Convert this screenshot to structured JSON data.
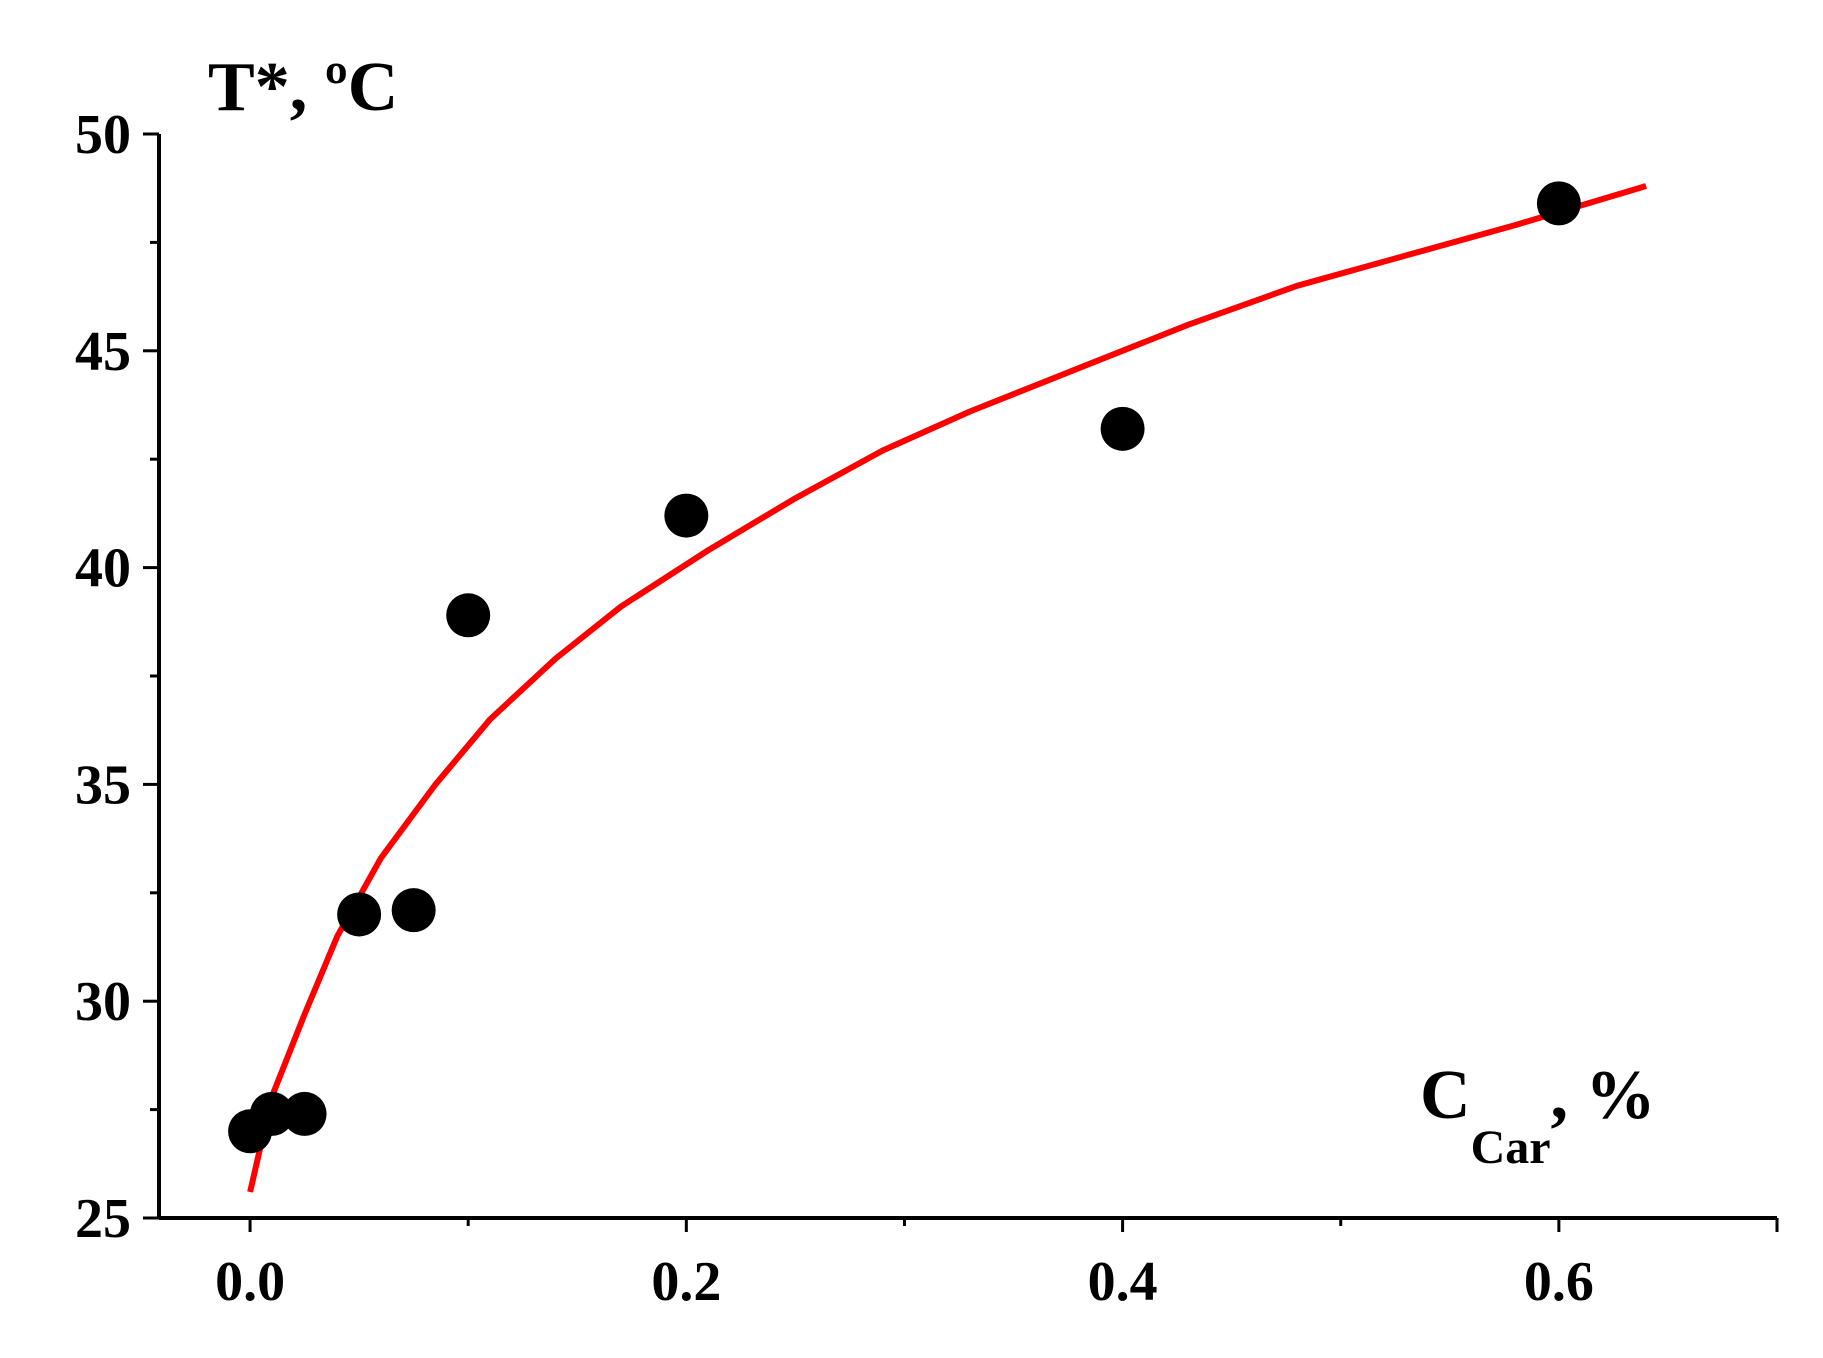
{
  "chart_data": {
    "type": "scatter",
    "ylabel": "T*, ºC",
    "xlabel_main": "C",
    "xlabel_sub": "Car",
    "xlabel_suffix": ", %",
    "xlim": [
      -0.05,
      0.7
    ],
    "ylim": [
      25,
      50
    ],
    "x_ticks": [
      0.0,
      0.2,
      0.4,
      0.6
    ],
    "x_tick_labels": [
      "0.0",
      "0.2",
      "0.4",
      "0.6"
    ],
    "y_ticks": [
      25,
      30,
      35,
      40,
      45,
      50
    ],
    "y_tick_labels": [
      "25",
      "30",
      "35",
      "40",
      "45",
      "50"
    ],
    "grid": false,
    "series": [
      {
        "kind": "points",
        "color": "#000000",
        "x": [
          0.0,
          0.01,
          0.025,
          0.05,
          0.075,
          0.1,
          0.2,
          0.4,
          0.6
        ],
        "y": [
          27.0,
          27.4,
          27.4,
          32.0,
          32.1,
          38.9,
          41.2,
          43.2,
          48.4
        ]
      },
      {
        "kind": "fit-line",
        "color": "#ff0000",
        "x": [
          0.0,
          0.01,
          0.025,
          0.04,
          0.06,
          0.085,
          0.11,
          0.14,
          0.17,
          0.21,
          0.25,
          0.29,
          0.33,
          0.38,
          0.43,
          0.48,
          0.53,
          0.58,
          0.64
        ],
        "y": [
          25.6,
          27.8,
          29.7,
          31.5,
          33.3,
          35.0,
          36.5,
          37.9,
          39.1,
          40.4,
          41.6,
          42.7,
          43.6,
          44.6,
          45.6,
          46.5,
          47.2,
          47.9,
          48.8
        ]
      }
    ]
  }
}
